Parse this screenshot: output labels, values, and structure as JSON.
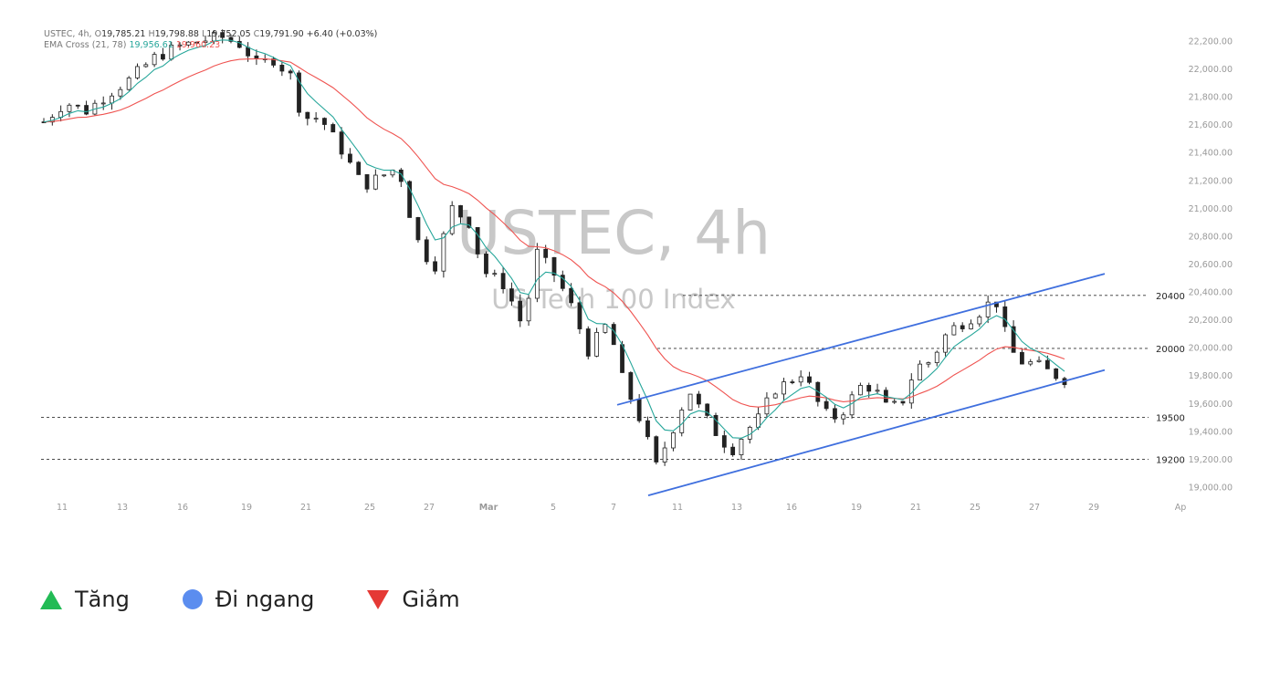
{
  "chart_data": {
    "type": "candlestick",
    "watermark": {
      "symbol": "USTEC, 4h",
      "description": "US Tech 100 Index"
    },
    "header": {
      "symbol_tf": "USTEC, 4h,",
      "o_label": "O",
      "o": "19,785.21",
      "h_label": "H",
      "h": "19,798.88",
      "l_label": "L",
      "l": "19,752.05",
      "c_label": "C",
      "c": "19,791.90",
      "change": "+6.40 (+0.03%)",
      "ema_label": "EMA Cross (21, 78)",
      "ema_fast": "19,956.61",
      "ema_slow": "19,960.23"
    },
    "ylim": [
      18900,
      22300
    ],
    "y_ticks": [
      "22,200.00",
      "22,000.00",
      "21,800.00",
      "21,600.00",
      "21,400.00",
      "21,200.00",
      "21,000.00",
      "20,800.00",
      "20,600.00",
      "20,400.00",
      "20,200.00",
      "20,000.00",
      "19,800.00",
      "19,600.00",
      "19,400.00",
      "19,200.00",
      "19,000.00"
    ],
    "x_ticks": [
      "11",
      "13",
      "16",
      "19",
      "21",
      "25",
      "27",
      "Mar",
      "5",
      "7",
      "11",
      "13",
      "16",
      "19",
      "21",
      "25",
      "27",
      "29",
      "Ap"
    ],
    "levels": [
      {
        "label": "20400",
        "value": 20375
      },
      {
        "label": "20000",
        "value": 19995
      },
      {
        "label": "19500",
        "value": 19500
      },
      {
        "label": "19200",
        "value": 19200
      }
    ],
    "channel": {
      "upper": [
        [
          0.0,
          19590
        ],
        [
          1.0,
          20530
        ]
      ],
      "lower": [
        [
          0.03,
          18940
        ],
        [
          1.0,
          19840
        ]
      ]
    },
    "colors": {
      "ema_fast": "#26a69a",
      "ema_slow": "#ef5350",
      "channel": "#3f6fde",
      "candle": "#222222",
      "level": "#333333",
      "grid_text": "#999999",
      "tri_up": "#22bb55",
      "dot": "#5b8def",
      "tri_down": "#e53935"
    }
  },
  "legend": {
    "up": {
      "icon": "triangle-up-icon",
      "label": "Tăng"
    },
    "sideways": {
      "icon": "circle-icon",
      "label": "Đi ngang"
    },
    "down": {
      "icon": "triangle-down-icon",
      "label": "Giảm"
    }
  }
}
